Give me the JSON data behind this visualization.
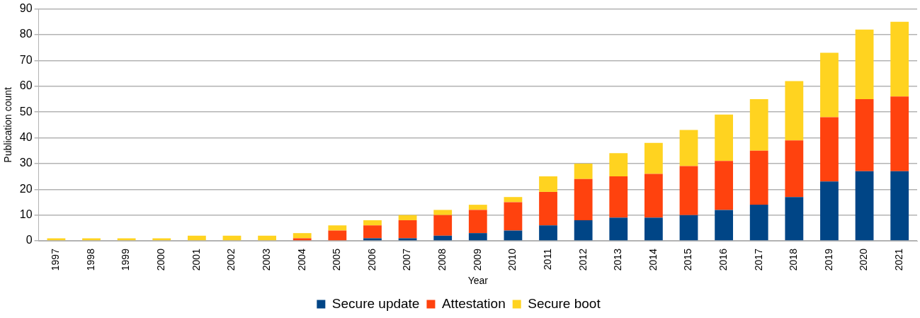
{
  "chart_data": {
    "type": "bar",
    "stacked": true,
    "xlabel": "Year",
    "ylabel": "Publication count",
    "categories": [
      "1997",
      "1998",
      "1999",
      "2000",
      "2001",
      "2002",
      "2003",
      "2004",
      "2005",
      "2006",
      "2007",
      "2008",
      "2009",
      "2010",
      "2011",
      "2012",
      "2013",
      "2014",
      "2015",
      "2016",
      "2017",
      "2018",
      "2019",
      "2020",
      "2021"
    ],
    "series": [
      {
        "name": "Secure update",
        "color": "#004586",
        "values": [
          0,
          0,
          0,
          0,
          0,
          0,
          0,
          0,
          0,
          1,
          1,
          2,
          3,
          4,
          6,
          8,
          9,
          9,
          10,
          12,
          14,
          17,
          23,
          27,
          27
        ]
      },
      {
        "name": "Attestation",
        "color": "#ff420e",
        "values": [
          0,
          0,
          0,
          0,
          0,
          0,
          0,
          1,
          4,
          5,
          7,
          8,
          9,
          11,
          13,
          16,
          16,
          17,
          19,
          19,
          21,
          22,
          25,
          28,
          29
        ]
      },
      {
        "name": "Secure boot",
        "color": "#ffd320",
        "values": [
          1,
          1,
          1,
          1,
          2,
          2,
          2,
          2,
          2,
          2,
          2,
          2,
          2,
          2,
          6,
          6,
          9,
          12,
          14,
          18,
          20,
          23,
          25,
          27,
          29
        ]
      }
    ],
    "ylim": [
      0,
      90
    ],
    "yticks": [
      0,
      10,
      20,
      30,
      40,
      50,
      60,
      70,
      80,
      90
    ],
    "grid": "y",
    "legend": "bottom"
  }
}
